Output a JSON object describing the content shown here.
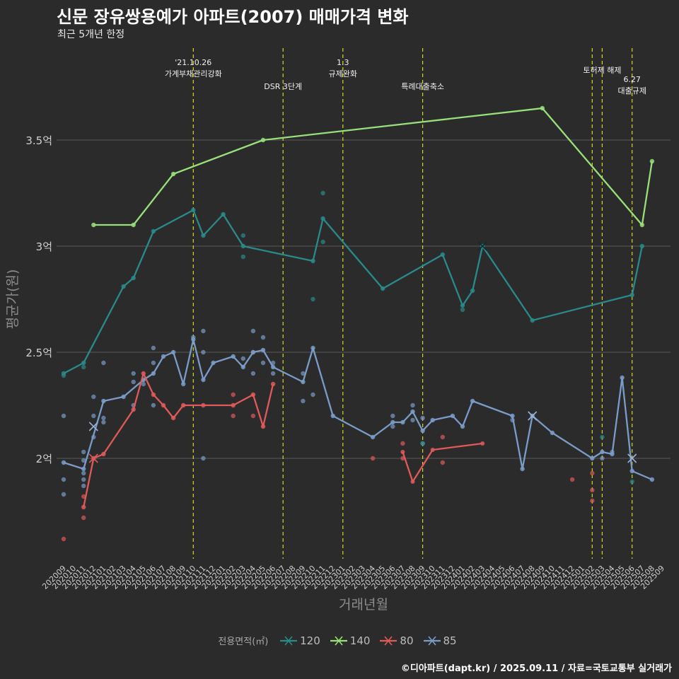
{
  "header": {
    "title": "신문 장유쌍용예가 아파트(2007) 매매가격 변화",
    "subtitle": "최근 5개년 한정"
  },
  "caption": "©디아파트(dapt.kr) / 2025.09.11 / 자료=국토교통부 실거래가",
  "legend": {
    "title": "전용면적(㎡)",
    "items": [
      {
        "label": "120",
        "color": "#2a8a8a"
      },
      {
        "label": "140",
        "color": "#98e07a"
      },
      {
        "label": "80",
        "color": "#e05a5a"
      },
      {
        "label": "85",
        "color": "#7a9cc8"
      }
    ]
  },
  "chart_data": {
    "type": "line",
    "xlabel": "거래년월",
    "ylabel": "평균가(원)",
    "ylim": [
      1.52,
      4.0
    ],
    "yticks": [
      {
        "v": 2.0,
        "label": "2억"
      },
      {
        "v": 2.5,
        "label": "2.5억"
      },
      {
        "v": 3.0,
        "label": "3억"
      },
      {
        "v": 3.5,
        "label": "3.5억"
      }
    ],
    "x_categories": [
      "202009",
      "202010",
      "202011",
      "202012",
      "202101",
      "202102",
      "202103",
      "202104",
      "202105",
      "202106",
      "202107",
      "202108",
      "202109",
      "202110",
      "202111",
      "202112",
      "202201",
      "202202",
      "202203",
      "202204",
      "202205",
      "202206",
      "202207",
      "202208",
      "202209",
      "202210",
      "202211",
      "202212",
      "202301",
      "202302",
      "202303",
      "202304",
      "202305",
      "202306",
      "202307",
      "202308",
      "202309",
      "202310",
      "202311",
      "202312",
      "202401",
      "202402",
      "202403",
      "202404",
      "202405",
      "202406",
      "202407",
      "202408",
      "202409",
      "202410",
      "202411",
      "202412",
      "202501",
      "202502",
      "202503",
      "202504",
      "202505",
      "202506",
      "202507",
      "202508",
      "202509"
    ],
    "events": [
      {
        "x": "202110",
        "lines": [
          "'21.10.26",
          "가계부채관리강화"
        ],
        "row": 0
      },
      {
        "x": "202207",
        "lines": [
          "DSR 3단계"
        ],
        "row": 1
      },
      {
        "x": "202301",
        "lines": [
          "1.3",
          "규제완화"
        ],
        "row": 0
      },
      {
        "x": "202309",
        "lines": [
          "특례대출축소"
        ],
        "row": 1
      },
      {
        "x": "202503",
        "lines": [
          "토허제 해제"
        ],
        "row": 0
      },
      {
        "x": "202506",
        "lines": [
          "6.27",
          "대출규제"
        ],
        "row": 2
      }
    ],
    "extra_vlines": [
      "202502"
    ],
    "series": [
      {
        "name": "120",
        "color": "#2a8a8a",
        "line": [
          [
            "202009",
            2.4
          ],
          [
            "202011",
            2.45
          ],
          [
            "202103",
            2.81
          ],
          [
            "202104",
            2.85
          ],
          [
            "202106",
            3.07
          ],
          [
            "202110",
            3.17
          ],
          [
            "202111",
            3.05
          ],
          [
            "202201",
            3.15
          ],
          [
            "202203",
            3.0
          ],
          [
            "202210",
            2.93
          ],
          [
            "202211",
            3.13
          ],
          [
            "202305",
            2.8
          ],
          [
            "202311",
            2.96
          ],
          [
            "202401",
            2.72
          ],
          [
            "202402",
            2.79
          ],
          [
            "202403",
            3.0
          ],
          [
            "202408",
            2.65
          ],
          [
            "202506",
            2.77
          ],
          [
            "202507",
            3.0
          ]
        ],
        "points": [
          [
            "202009",
            2.39
          ],
          [
            "202011",
            2.43
          ],
          [
            "202211",
            3.25
          ],
          [
            "202211",
            3.02
          ],
          [
            "202203",
            3.05
          ],
          [
            "202203",
            2.95
          ],
          [
            "202210",
            2.75
          ],
          [
            "202401",
            2.7
          ],
          [
            "202309",
            2.07
          ],
          [
            "202503",
            2.1
          ],
          [
            "202506",
            1.89
          ]
        ],
        "cross": [
          [
            "202403",
            3.0
          ]
        ]
      },
      {
        "name": "140",
        "color": "#98e07a",
        "line": [
          [
            "202012",
            3.1
          ],
          [
            "202104",
            3.1
          ],
          [
            "202108",
            3.34
          ],
          [
            "202205",
            3.5
          ],
          [
            "202409",
            3.65
          ],
          [
            "202507",
            3.1
          ],
          [
            "202508",
            3.4
          ]
        ],
        "points": [],
        "cross": []
      },
      {
        "name": "80",
        "color": "#e05a5a",
        "line": [
          [
            "202011",
            1.77
          ],
          [
            "202012",
            2.0
          ],
          [
            "202101",
            2.02
          ],
          [
            "202104",
            2.23
          ],
          [
            "202105",
            2.4
          ],
          [
            "202106",
            2.3
          ],
          [
            "202107",
            2.25
          ],
          [
            "202108",
            2.19
          ],
          [
            "202109",
            2.25
          ],
          [
            "202111",
            2.25
          ],
          [
            "202202",
            2.25
          ],
          [
            "202204",
            2.3
          ],
          [
            "202205",
            2.15
          ],
          [
            "202206",
            2.35
          ]
        ],
        "points": [
          [
            "202009",
            1.62
          ],
          [
            "202011",
            1.72
          ],
          [
            "202011",
            1.82
          ],
          [
            "202202",
            2.2
          ],
          [
            "202202",
            2.3
          ],
          [
            "202204",
            2.2
          ],
          [
            "202204",
            2.5
          ],
          [
            "202304",
            2.0
          ],
          [
            "202307",
            2.07
          ],
          [
            "202307",
            2.0
          ],
          [
            "202311",
            2.1
          ],
          [
            "202311",
            1.98
          ],
          [
            "202412",
            1.9
          ],
          [
            "202502",
            1.93
          ],
          [
            "202502",
            1.85
          ],
          [
            "202502",
            1.8
          ]
        ],
        "cross": [
          [
            "202012",
            2.0
          ]
        ],
        "line2": [
          [
            "202307",
            2.03
          ],
          [
            "202308",
            1.89
          ],
          [
            "202310",
            2.04
          ],
          [
            "202403",
            2.07
          ]
        ]
      },
      {
        "name": "85",
        "color": "#7a9cc8",
        "line": [
          [
            "202009",
            1.98
          ],
          [
            "202011",
            1.95
          ],
          [
            "202101",
            2.27
          ],
          [
            "202103",
            2.29
          ],
          [
            "202105",
            2.37
          ],
          [
            "202106",
            2.4
          ],
          [
            "202107",
            2.48
          ],
          [
            "202108",
            2.5
          ],
          [
            "202109",
            2.35
          ],
          [
            "202110",
            2.56
          ],
          [
            "202111",
            2.37
          ],
          [
            "202112",
            2.45
          ],
          [
            "202202",
            2.48
          ],
          [
            "202203",
            2.43
          ],
          [
            "202204",
            2.5
          ],
          [
            "202205",
            2.51
          ],
          [
            "202206",
            2.43
          ],
          [
            "202209",
            2.36
          ],
          [
            "202210",
            2.52
          ],
          [
            "202212",
            2.2
          ],
          [
            "202304",
            2.1
          ],
          [
            "202306",
            2.17
          ],
          [
            "202307",
            2.17
          ],
          [
            "202308",
            2.22
          ],
          [
            "202309",
            2.13
          ],
          [
            "202310",
            2.18
          ],
          [
            "202312",
            2.2
          ],
          [
            "202401",
            2.15
          ],
          [
            "202402",
            2.27
          ],
          [
            "202406",
            2.2
          ],
          [
            "202407",
            1.95
          ],
          [
            "202408",
            2.2
          ],
          [
            "202410",
            2.12
          ],
          [
            "202502",
            2.0
          ],
          [
            "202503",
            2.03
          ],
          [
            "202504",
            2.02
          ],
          [
            "202505",
            2.38
          ],
          [
            "202506",
            1.94
          ],
          [
            "202508",
            1.9
          ]
        ],
        "points": [
          [
            "202009",
            2.2
          ],
          [
            "202009",
            1.9
          ],
          [
            "202009",
            1.83
          ],
          [
            "202011",
            2.03
          ],
          [
            "202011",
            1.99
          ],
          [
            "202011",
            1.93
          ],
          [
            "202011",
            1.9
          ],
          [
            "202011",
            1.87
          ],
          [
            "202012",
            2.29
          ],
          [
            "202012",
            2.2
          ],
          [
            "202012",
            2.1
          ],
          [
            "202101",
            2.45
          ],
          [
            "202101",
            2.19
          ],
          [
            "202101",
            2.17
          ],
          [
            "202104",
            2.4
          ],
          [
            "202104",
            2.36
          ],
          [
            "202104",
            2.25
          ],
          [
            "202105",
            2.35
          ],
          [
            "202106",
            2.52
          ],
          [
            "202106",
            2.45
          ],
          [
            "202106",
            2.25
          ],
          [
            "202110",
            2.57
          ],
          [
            "202111",
            2.6
          ],
          [
            "202111",
            2.5
          ],
          [
            "202111",
            2.0
          ],
          [
            "202203",
            2.47
          ],
          [
            "202204",
            2.6
          ],
          [
            "202204",
            2.4
          ],
          [
            "202205",
            2.57
          ],
          [
            "202205",
            2.45
          ],
          [
            "202206",
            2.45
          ],
          [
            "202206",
            2.4
          ],
          [
            "202209",
            2.4
          ],
          [
            "202209",
            2.27
          ],
          [
            "202210",
            2.3
          ],
          [
            "202306",
            2.2
          ],
          [
            "202306",
            2.15
          ],
          [
            "202308",
            2.25
          ],
          [
            "202308",
            2.18
          ],
          [
            "202309",
            2.19
          ],
          [
            "202309",
            2.07
          ],
          [
            "202406",
            2.18
          ],
          [
            "202503",
            2.0
          ],
          [
            "202504",
            2.03
          ]
        ],
        "cross": [
          [
            "202012",
            2.15
          ],
          [
            "202408",
            2.2
          ],
          [
            "202506",
            2.0
          ]
        ]
      }
    ]
  }
}
